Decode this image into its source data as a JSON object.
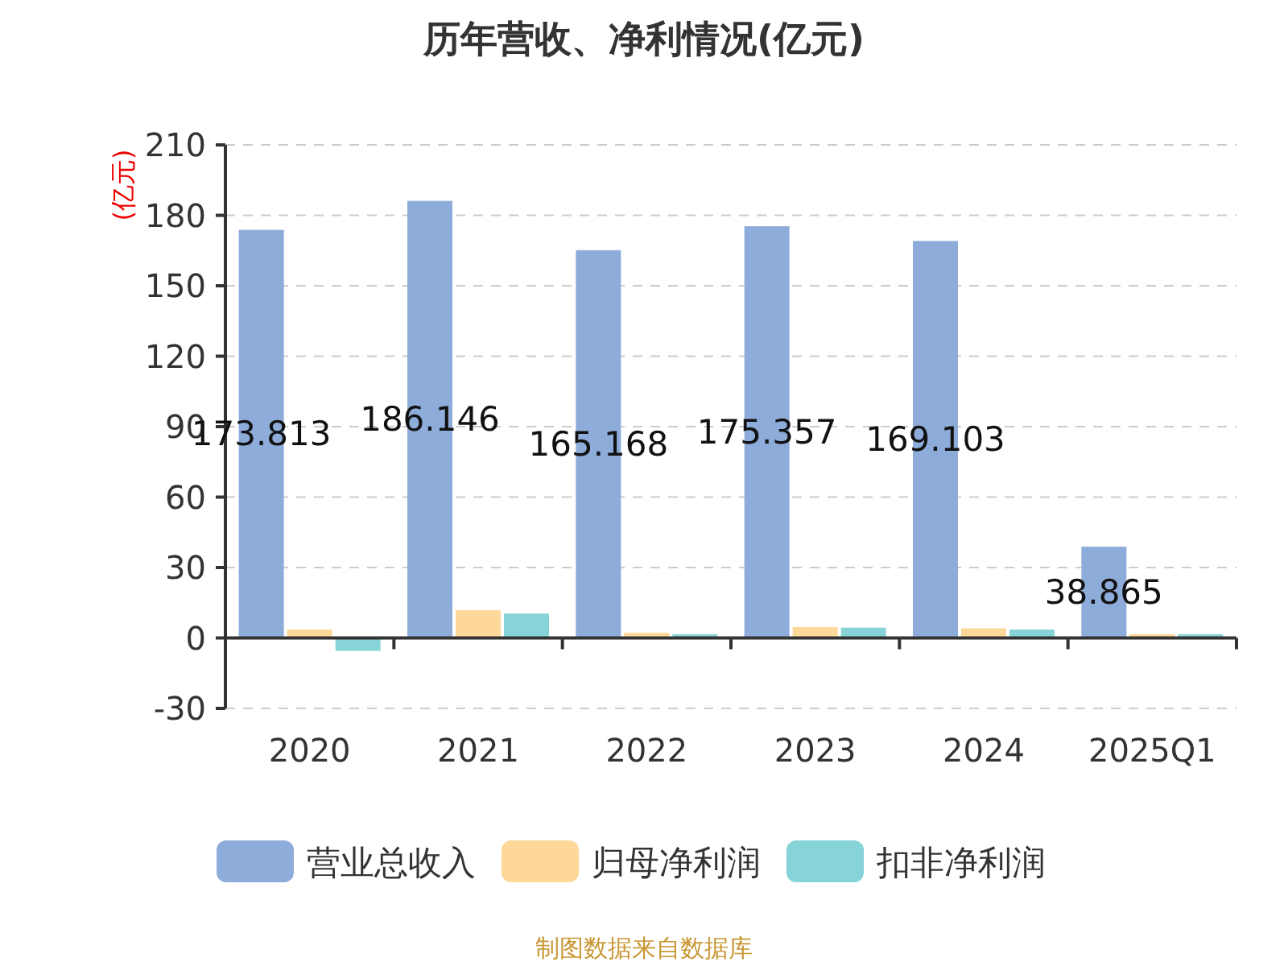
{
  "chart_data": {
    "type": "bar",
    "title": "历年营收、净利情况(亿元)",
    "ylabel": "(亿元)",
    "categories": [
      "2020",
      "2021",
      "2022",
      "2023",
      "2024",
      "2025Q1"
    ],
    "series": [
      {
        "name": "营业总收入",
        "color": "#8eacda",
        "values": [
          173.813,
          186.146,
          165.168,
          175.357,
          169.103,
          38.865
        ],
        "value_labels": [
          "173.813",
          "186.146",
          "165.168",
          "175.357",
          "169.103",
          "38.865"
        ]
      },
      {
        "name": "归母净利润",
        "color": "#fdd898",
        "values": [
          3.6,
          11.8,
          2.2,
          4.6,
          4.1,
          1.6
        ]
      },
      {
        "name": "扣非净利润",
        "color": "#86d4d8",
        "values": [
          -5.5,
          10.4,
          1.6,
          4.4,
          3.6,
          1.6
        ]
      }
    ],
    "ylim": [
      -30,
      210
    ],
    "yticks": [
      -30,
      0,
      30,
      60,
      90,
      120,
      150,
      180,
      210
    ],
    "grid": "y",
    "legend": "bottom",
    "annotations": [
      "制图数据来自数据库"
    ]
  }
}
